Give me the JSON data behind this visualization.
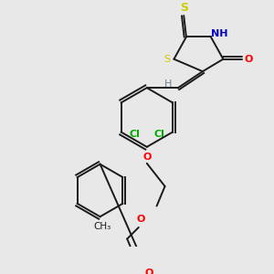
{
  "bg_color": "#e8e8e8",
  "bond_color": "#1a1a1a",
  "S_color": "#cccc00",
  "N_color": "#0000cc",
  "O_color": "#ff0000",
  "Cl_color": "#00aa00",
  "H_color": "#708090",
  "figsize": [
    3.0,
    3.0
  ],
  "dpi": 100,
  "xlim": [
    0,
    300
  ],
  "ylim": [
    0,
    300
  ]
}
